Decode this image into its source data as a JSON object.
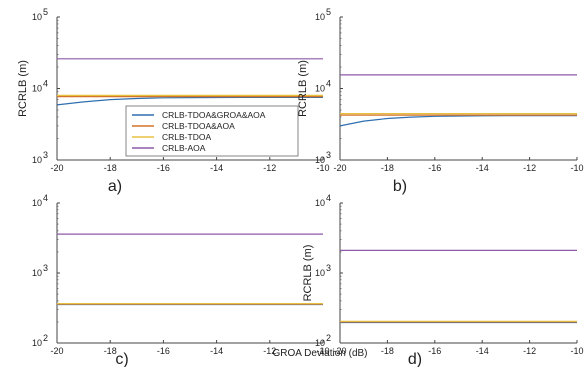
{
  "chart_data": [
    {
      "panel": "a)",
      "type": "line",
      "ylabel": "RCRLB (m)",
      "yscale": "log",
      "xlim": [
        -20,
        -10
      ],
      "ylim": [
        1000,
        100000
      ],
      "x_ticks": [
        "-20",
        "-18",
        "-16",
        "-14",
        "-12",
        "-10"
      ],
      "y_ticks": [
        {
          "base": "10",
          "exp": "3"
        },
        {
          "base": "10",
          "exp": "4"
        },
        {
          "base": "10",
          "exp": "5"
        }
      ],
      "legend": true,
      "legend_position": "lower-right",
      "series": [
        {
          "name": "CRLB-TDOA&GROA&AOA",
          "color": "#2f6fb0",
          "x": [
            -20,
            -19,
            -18,
            -17,
            -16,
            -15,
            -14,
            -13,
            -12,
            -11,
            -10
          ],
          "y": [
            5900,
            6500,
            7000,
            7250,
            7400,
            7450,
            7480,
            7500,
            7500,
            7500,
            7500
          ]
        },
        {
          "name": "CRLB-TDOA&AOA",
          "color": "#d4752a",
          "x": [
            -20,
            -10
          ],
          "y": [
            7700,
            7700
          ]
        },
        {
          "name": "CRLB-TDOA",
          "color": "#e8c040",
          "x": [
            -20,
            -10
          ],
          "y": [
            8000,
            8000
          ]
        },
        {
          "name": "CRLB-AOA",
          "color": "#8c5aa8",
          "x": [
            -20,
            -10
          ],
          "y": [
            26000,
            26000
          ]
        }
      ]
    },
    {
      "panel": "b)",
      "type": "line",
      "ylabel": "RCRLB (m)",
      "yscale": "log",
      "xlim": [
        -20,
        -10
      ],
      "ylim": [
        1000,
        100000
      ],
      "x_ticks": [
        "-20",
        "-18",
        "-16",
        "-14",
        "-12",
        "-10"
      ],
      "y_ticks": [
        {
          "base": "10",
          "exp": "3"
        },
        {
          "base": "10",
          "exp": "4"
        },
        {
          "base": "10",
          "exp": "5"
        }
      ],
      "legend": false,
      "series": [
        {
          "name": "CRLB-TDOA&GROA&AOA",
          "color": "#2f6fb0",
          "x": [
            -20,
            -19,
            -18,
            -17,
            -16,
            -15,
            -14,
            -13,
            -12,
            -11,
            -10
          ],
          "y": [
            3000,
            3500,
            3800,
            3980,
            4080,
            4130,
            4150,
            4160,
            4170,
            4170,
            4170
          ]
        },
        {
          "name": "CRLB-TDOA&AOA",
          "color": "#d4752a",
          "x": [
            -20,
            -10
          ],
          "y": [
            4250,
            4250
          ]
        },
        {
          "name": "CRLB-TDOA",
          "color": "#e8c040",
          "x": [
            -20,
            -10
          ],
          "y": [
            4450,
            4450
          ]
        },
        {
          "name": "CRLB-AOA",
          "color": "#8c5aa8",
          "x": [
            -20,
            -10
          ],
          "y": [
            15500,
            15500
          ]
        }
      ]
    },
    {
      "panel": "c)",
      "type": "line",
      "yscale": "log",
      "xlim": [
        -20,
        -10
      ],
      "ylim": [
        100,
        10000
      ],
      "x_ticks": [
        "-20",
        "-18",
        "-16",
        "-14",
        "-12",
        "-10"
      ],
      "y_ticks": [
        {
          "base": "10",
          "exp": "2"
        },
        {
          "base": "10",
          "exp": "3"
        },
        {
          "base": "10",
          "exp": "4"
        }
      ],
      "legend": false,
      "series": [
        {
          "name": "CRLB-TDOA&GROA&AOA",
          "color": "#2f6fb0",
          "x": [
            -20,
            -10
          ],
          "y": [
            355,
            355
          ]
        },
        {
          "name": "CRLB-TDOA&AOA",
          "color": "#d4752a",
          "x": [
            -20,
            -10
          ],
          "y": [
            360,
            360
          ]
        },
        {
          "name": "CRLB-TDOA",
          "color": "#e8c040",
          "x": [
            -20,
            -10
          ],
          "y": [
            365,
            365
          ]
        },
        {
          "name": "CRLB-AOA",
          "color": "#8c5aa8",
          "x": [
            -20,
            -10
          ],
          "y": [
            3600,
            3600
          ]
        }
      ]
    },
    {
      "panel": "d)",
      "type": "line",
      "ylabel": "RCRLB (m)",
      "yscale": "log",
      "xlim": [
        -20,
        -10
      ],
      "ylim": [
        100,
        10000
      ],
      "x_ticks": [
        "-20",
        "-18",
        "-16",
        "-14",
        "-12",
        "-10"
      ],
      "y_ticks": [
        {
          "base": "10",
          "exp": "2"
        },
        {
          "base": "10",
          "exp": "3"
        },
        {
          "base": "10",
          "exp": "4"
        }
      ],
      "legend": false,
      "series": [
        {
          "name": "CRLB-TDOA&GROA&AOA",
          "color": "#2f6fb0",
          "x": [
            -20,
            -10
          ],
          "y": [
            196,
            196
          ]
        },
        {
          "name": "CRLB-TDOA&AOA",
          "color": "#d4752a",
          "x": [
            -20,
            -10
          ],
          "y": [
            200,
            200
          ]
        },
        {
          "name": "CRLB-TDOA",
          "color": "#e8c040",
          "x": [
            -20,
            -10
          ],
          "y": [
            204,
            204
          ]
        },
        {
          "name": "CRLB-AOA",
          "color": "#8c5aa8",
          "x": [
            -20,
            -10
          ],
          "y": [
            2100,
            2100
          ]
        }
      ]
    }
  ],
  "shared_xlabel": "GROA Deviation (dB)"
}
